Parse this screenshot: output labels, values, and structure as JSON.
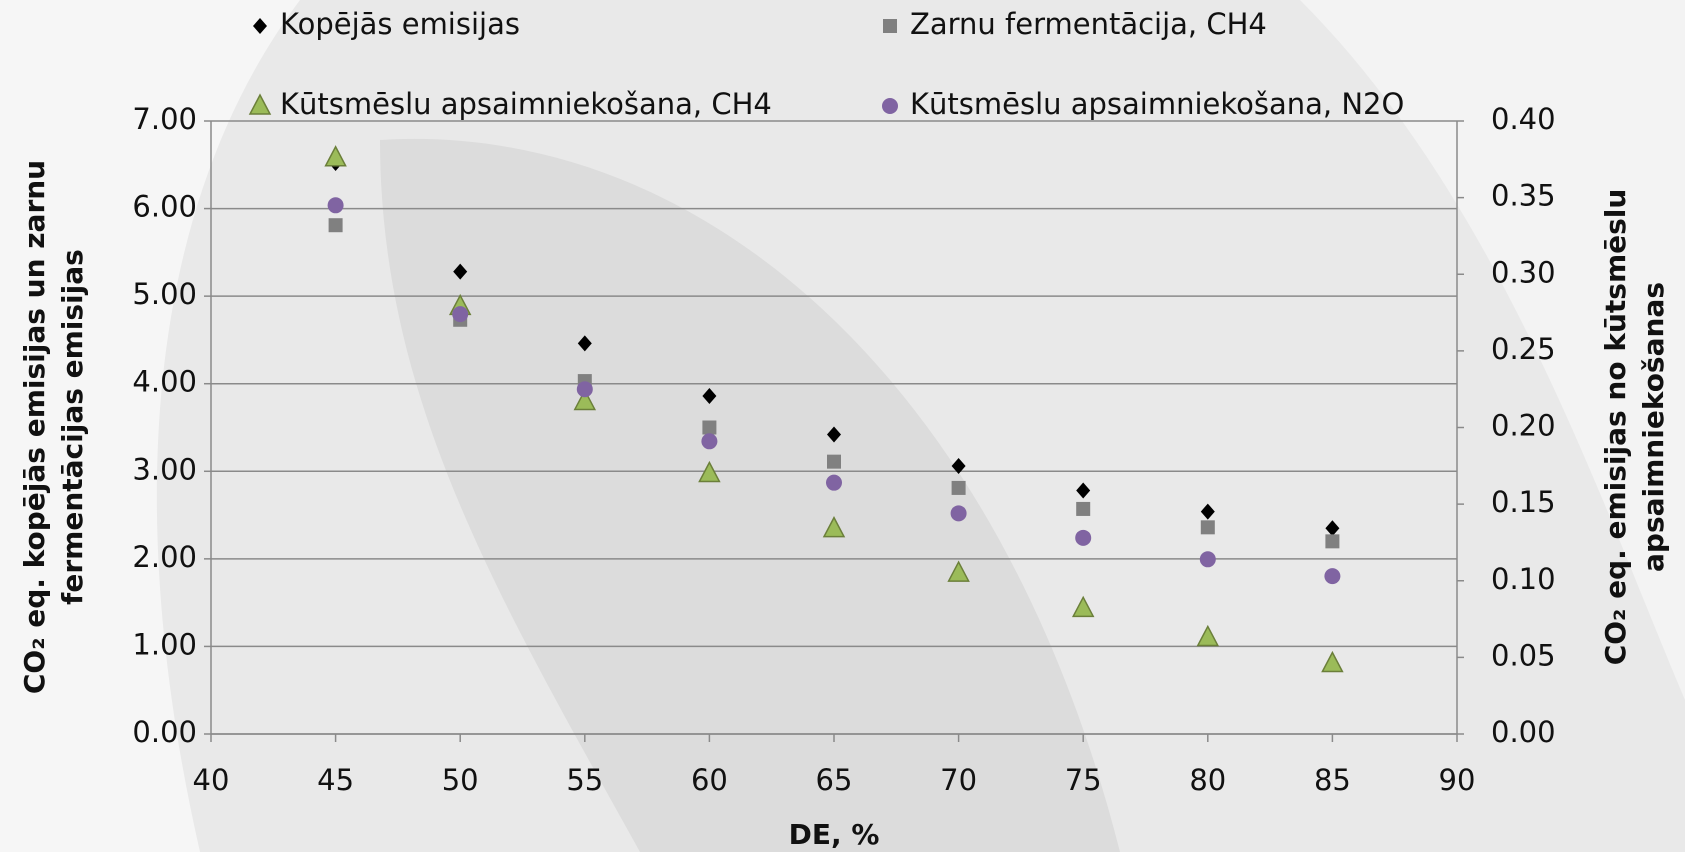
{
  "chart_data": {
    "type": "scatter",
    "xlabel": "DE, %",
    "ylabel": [
      "CO₂ eq. kopējās emisijas un zarnu",
      "fermentācijas emisijas"
    ],
    "y2label": [
      "CO₂ eq. emisijas no kūtsmēslu",
      "apsaimniekošanas"
    ],
    "x": [
      45,
      50,
      55,
      60,
      65,
      70,
      75,
      80,
      85
    ],
    "xlim": [
      40,
      90
    ],
    "xticks": [
      40,
      45,
      50,
      55,
      60,
      65,
      70,
      75,
      80,
      85,
      90
    ],
    "ylim": [
      0,
      7
    ],
    "yticks": [
      {
        "value": 0,
        "label": "0.00"
      },
      {
        "value": 1,
        "label": "1.00"
      },
      {
        "value": 2,
        "label": "2.00"
      },
      {
        "value": 3,
        "label": "3.00"
      },
      {
        "value": 4,
        "label": "4.00"
      },
      {
        "value": 5,
        "label": "5.00"
      },
      {
        "value": 6,
        "label": "6.00"
      },
      {
        "value": 7,
        "label": "7.00"
      }
    ],
    "y2lim": [
      0,
      0.4
    ],
    "y2ticks": [
      {
        "value": 0,
        "label": "0.00"
      },
      {
        "value": 0.05,
        "label": "0.05"
      },
      {
        "value": 0.1,
        "label": "0.10"
      },
      {
        "value": 0.15,
        "label": "0.15"
      },
      {
        "value": 0.2,
        "label": "0.20"
      },
      {
        "value": 0.25,
        "label": "0.25"
      },
      {
        "value": 0.3,
        "label": "0.30"
      },
      {
        "value": 0.35,
        "label": "0.35"
      },
      {
        "value": 0.4,
        "label": "0.40"
      }
    ],
    "grid": true,
    "series": [
      {
        "name": "Kopējās emisijas",
        "marker": "diamond",
        "color": "#000000",
        "values": [
          6.52,
          5.28,
          4.46,
          3.86,
          3.42,
          3.06,
          2.78,
          2.54,
          2.35
        ]
      },
      {
        "name": "Zarnu fermentācija, CH4",
        "marker": "square",
        "color": "#808080",
        "values": [
          5.81,
          4.73,
          4.03,
          3.5,
          3.11,
          2.81,
          2.57,
          2.36,
          2.2
        ]
      },
      {
        "name": "Kūtsmēslu apsaimniekošana, CH4",
        "marker": "triangle",
        "color": "#9bbb59",
        "axis": "y2",
        "values": [
          0.376,
          0.279,
          0.217,
          0.17,
          0.134,
          0.105,
          0.082,
          0.063,
          0.046
        ]
      },
      {
        "name": "Kūtsmēslu apsaimniekošana, N2O",
        "marker": "circle",
        "color": "#8064a2",
        "axis": "y2",
        "values": [
          0.345,
          0.274,
          0.225,
          0.191,
          0.164,
          0.144,
          0.128,
          0.114,
          0.103
        ]
      }
    ]
  }
}
